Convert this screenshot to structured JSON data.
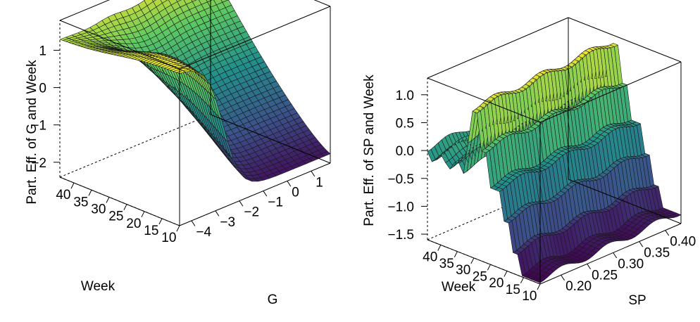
{
  "chart_data": [
    {
      "type": "surface",
      "zlabel": "Part. Eff. of G and Week",
      "xlabel": "G",
      "ylabel": "Week",
      "x_ticks": [
        "−4",
        "−3",
        "−2",
        "−1",
        "0",
        "1"
      ],
      "y_ticks": [
        "10",
        "15",
        "20",
        "25",
        "30",
        "35",
        "40"
      ],
      "z_ticks": [
        "−2",
        "−1",
        "0",
        "1"
      ],
      "xlim": [
        -4.5,
        1.8
      ],
      "ylim": [
        10,
        44
      ],
      "zlim": [
        -2.4,
        1.8
      ],
      "grid": "x: -4.5..1.8 (25 steps), week: 10..44 (40 steps)",
      "surface_notes": "High (~1.7) at G=-4.5 for all weeks, dropping steeply to a trough near G=-2.5, then rising towards G=1.8; the back edge at high week reaches ~1.6; front low edge ~-2.2 at week 10 around G=-1..0.5"
    },
    {
      "type": "surface",
      "zlabel": "Part. Eff. of SP  and Week",
      "xlabel": "SP",
      "ylabel": "Week",
      "x_ticks": [
        "0.20",
        "0.25",
        "0.30",
        "0.35",
        "0.40"
      ],
      "y_ticks": [
        "10",
        "15",
        "20",
        "25",
        "30",
        "35",
        "40"
      ],
      "z_ticks": [
        "−1.5",
        "−1.0",
        "−0.5",
        "0.0",
        "0.5",
        "1.0"
      ],
      "xlim": [
        0.16,
        0.43
      ],
      "ylim": [
        10,
        44
      ],
      "zlim": [
        -1.6,
        1.3
      ],
      "grid": "SP: 0.16..0.43 (40 steps), week: 10..44 (25 steps)",
      "surface_notes": "Step-like in week: low (~-1.5) for weeks below ~20 rising to ~1.2 near week 30, then falling to ~0 for later weeks; roughly constant in SP"
    }
  ],
  "colors": {
    "palette": [
      "#440154",
      "#3b528b",
      "#21918c",
      "#5ec962",
      "#fde725"
    ],
    "mesh_line": "#1a1a1a",
    "box_line": "#000000"
  }
}
